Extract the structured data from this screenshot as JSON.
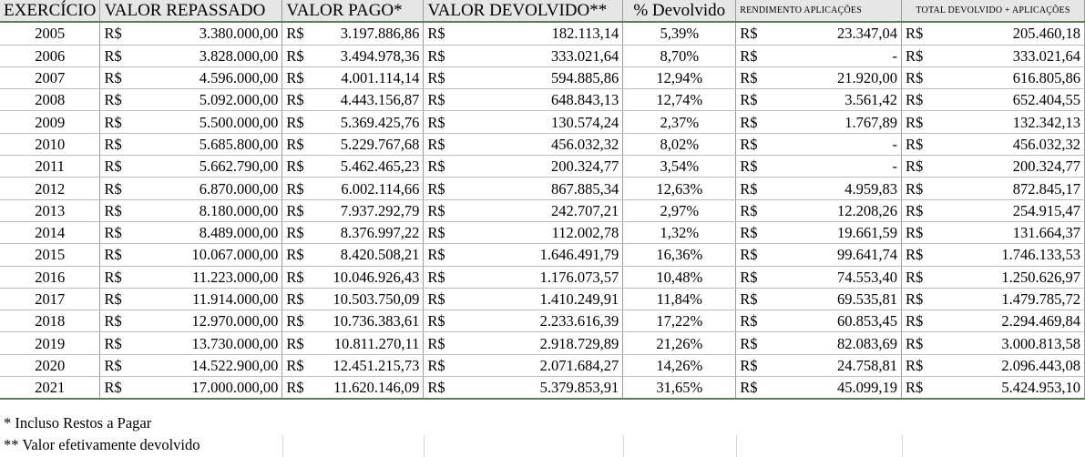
{
  "headers": {
    "exercicio": "EXERCÍCIO",
    "valor_repassado": "VALOR REPASSADO",
    "valor_pago": "VALOR PAGO*",
    "valor_devolvido": "VALOR DEVOLVIDO**",
    "pct_devolvido": "%  Devolvido",
    "rendimento": "RENDIMENTO APLICAÇÕES",
    "total": "TOTAL DEVOLVIDO + APLICAÇÕES"
  },
  "currency": "R$",
  "rows": [
    {
      "year": "2005",
      "repassado": "3.380.000,00",
      "pago": "3.197.886,86",
      "devolvido": "182.113,14",
      "pct": "5,39%",
      "rendimento": "23.347,04",
      "total": "205.460,18"
    },
    {
      "year": "2006",
      "repassado": "3.828.000,00",
      "pago": "3.494.978,36",
      "devolvido": "333.021,64",
      "pct": "8,70%",
      "rendimento": "-",
      "total": "333.021,64"
    },
    {
      "year": "2007",
      "repassado": "4.596.000,00",
      "pago": "4.001.114,14",
      "devolvido": "594.885,86",
      "pct": "12,94%",
      "rendimento": "21.920,00",
      "total": "616.805,86"
    },
    {
      "year": "2008",
      "repassado": "5.092.000,00",
      "pago": "4.443.156,87",
      "devolvido": "648.843,13",
      "pct": "12,74%",
      "rendimento": "3.561,42",
      "total": "652.404,55"
    },
    {
      "year": "2009",
      "repassado": "5.500.000,00",
      "pago": "5.369.425,76",
      "devolvido": "130.574,24",
      "pct": "2,37%",
      "rendimento": "1.767,89",
      "total": "132.342,13"
    },
    {
      "year": "2010",
      "repassado": "5.685.800,00",
      "pago": "5.229.767,68",
      "devolvido": "456.032,32",
      "pct": "8,02%",
      "rendimento": "-",
      "total": "456.032,32"
    },
    {
      "year": "2011",
      "repassado": "5.662.790,00",
      "pago": "5.462.465,23",
      "devolvido": "200.324,77",
      "pct": "3,54%",
      "rendimento": "-",
      "total": "200.324,77"
    },
    {
      "year": "2012",
      "repassado": "6.870.000,00",
      "pago": "6.002.114,66",
      "devolvido": "867.885,34",
      "pct": "12,63%",
      "rendimento": "4.959,83",
      "total": "872.845,17"
    },
    {
      "year": "2013",
      "repassado": "8.180.000,00",
      "pago": "7.937.292,79",
      "devolvido": "242.707,21",
      "pct": "2,97%",
      "rendimento": "12.208,26",
      "total": "254.915,47"
    },
    {
      "year": "2014",
      "repassado": "8.489.000,00",
      "pago": "8.376.997,22",
      "devolvido": "112.002,78",
      "pct": "1,32%",
      "rendimento": "19.661,59",
      "total": "131.664,37"
    },
    {
      "year": "2015",
      "repassado": "10.067.000,00",
      "pago": "8.420.508,21",
      "devolvido": "1.646.491,79",
      "pct": "16,36%",
      "rendimento": "99.641,74",
      "total": "1.746.133,53"
    },
    {
      "year": "2016",
      "repassado": "11.223.000,00",
      "pago": "10.046.926,43",
      "devolvido": "1.176.073,57",
      "pct": "10,48%",
      "rendimento": "74.553,40",
      "total": "1.250.626,97"
    },
    {
      "year": "2017",
      "repassado": "11.914.000,00",
      "pago": "10.503.750,09",
      "devolvido": "1.410.249,91",
      "pct": "11,84%",
      "rendimento": "69.535,81",
      "total": "1.479.785,72"
    },
    {
      "year": "2018",
      "repassado": "12.970.000,00",
      "pago": "10.736.383,61",
      "devolvido": "2.233.616,39",
      "pct": "17,22%",
      "rendimento": "60.853,45",
      "total": "2.294.469,84"
    },
    {
      "year": "2019",
      "repassado": "13.730.000,00",
      "pago": "10.811.270,11",
      "devolvido": "2.918.729,89",
      "pct": "21,26%",
      "rendimento": "82.083,69",
      "total": "3.000.813,58"
    },
    {
      "year": "2020",
      "repassado": "14.522.900,00",
      "pago": "12.451.215,73",
      "devolvido": "2.071.684,27",
      "pct": "14,26%",
      "rendimento": "24.758,81",
      "total": "2.096.443,08"
    },
    {
      "year": "2021",
      "repassado": "17.000.000,00",
      "pago": "11.620.146,09",
      "devolvido": "5.379.853,91",
      "pct": "31,65%",
      "rendimento": "45.099,19",
      "total": "5.424.953,10"
    }
  ],
  "footnotes": {
    "note1": "* Incluso Restos a Pagar",
    "note2": "** Valor efetivamente devolvido"
  }
}
